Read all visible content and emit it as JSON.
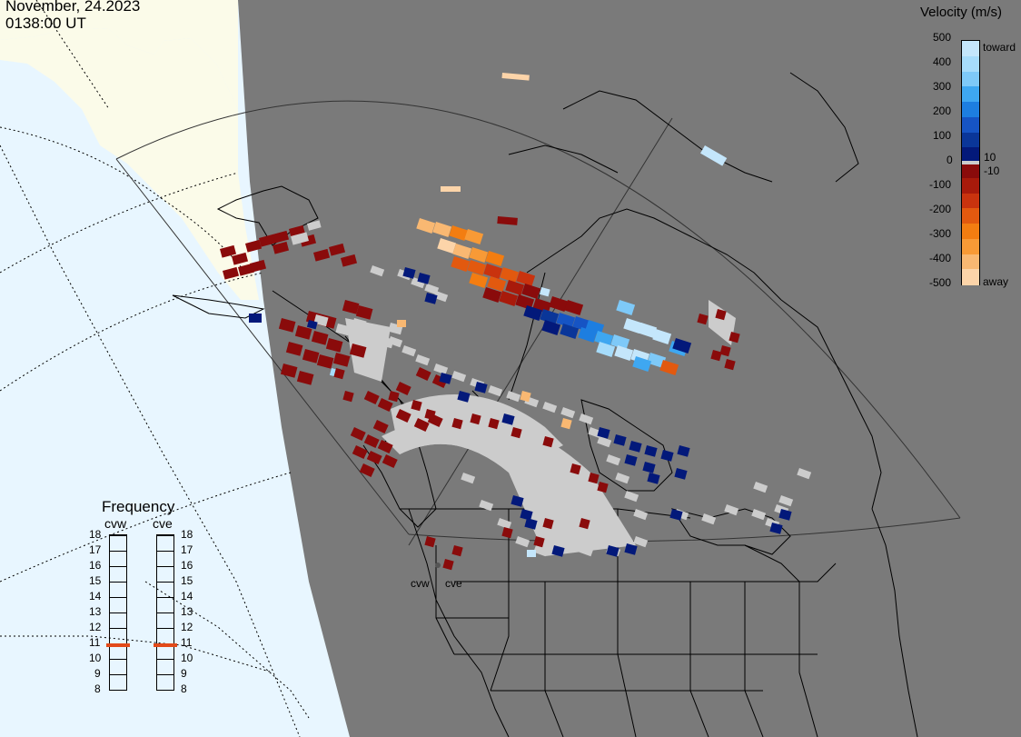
{
  "header": {
    "date": "November, 24.2023",
    "time": "0138:00 UT"
  },
  "velocity_scale": {
    "title": "Velocity (m/s)",
    "ticks": [
      "500",
      "400",
      "300",
      "200",
      "100",
      "0",
      "-100",
      "-200",
      "-300",
      "-400",
      "-500"
    ],
    "extra_labels": [
      "10",
      "-10"
    ],
    "end_labels": {
      "toward": "toward",
      "away": "away"
    },
    "colors": [
      "#c4e6fb",
      "#a6dcfb",
      "#7ec9f8",
      "#3ea7f1",
      "#1d7ee0",
      "#1654c4",
      "#0a3699",
      "#03197a",
      "#8a0b0b",
      "#a81a0b",
      "#c9330e",
      "#e2590f",
      "#f37d11",
      "#f89a36",
      "#f9b872",
      "#fcd4a9"
    ]
  },
  "frequency": {
    "title": "Frequency",
    "radars": [
      "cvw",
      "cve"
    ],
    "scale_mhz": [
      "18",
      "17",
      "16",
      "15",
      "14",
      "13",
      "12",
      "11",
      "10",
      "9",
      "8"
    ],
    "cvw_mhz": 10.9,
    "cve_mhz": 10.9,
    "marker_color": "#e24a19"
  },
  "radar_sites": [
    "cvw",
    "cve"
  ],
  "map_colors": {
    "sky": "#e8f6ff",
    "land_light": "#fbfbe9",
    "land_dark": "#7a7a7a",
    "ground_scatter": "#cccccc"
  }
}
